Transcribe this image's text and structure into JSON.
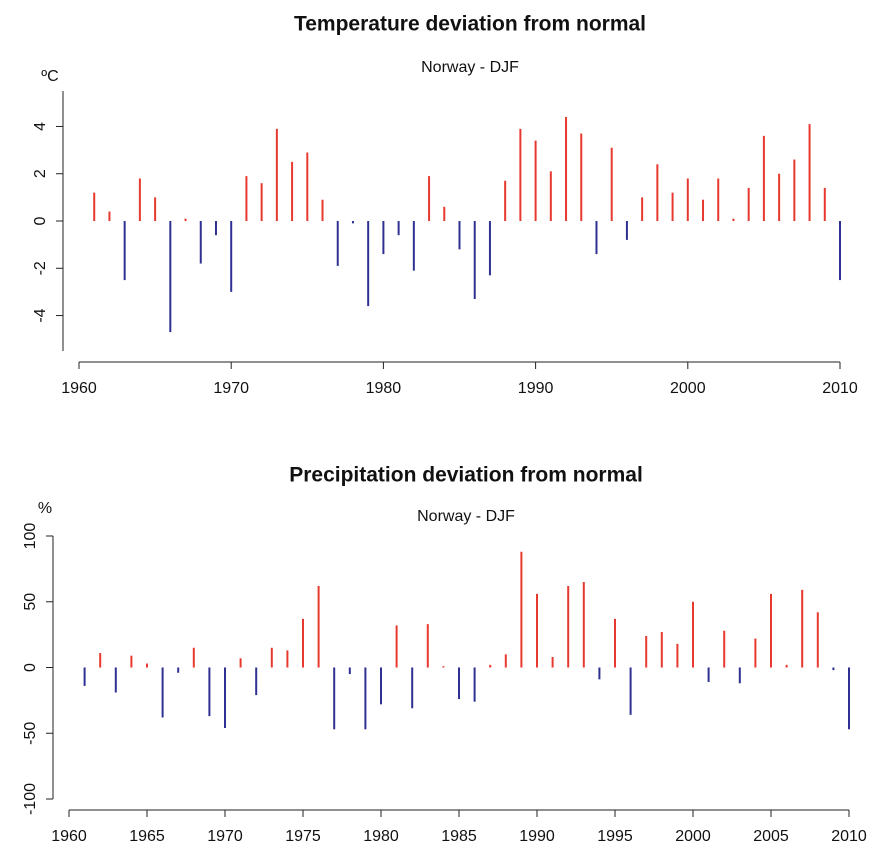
{
  "chart_data": [
    {
      "type": "bar",
      "title": "Temperature deviation from normal",
      "subtitle": "Norway - DJF",
      "y_label": "ºC",
      "positive_color": "#e8392f",
      "negative_color": "#2e3192",
      "x": [
        1961,
        1962,
        1963,
        1964,
        1965,
        1966,
        1967,
        1968,
        1969,
        1970,
        1971,
        1972,
        1973,
        1974,
        1975,
        1976,
        1977,
        1978,
        1979,
        1980,
        1981,
        1982,
        1983,
        1984,
        1985,
        1986,
        1987,
        1988,
        1989,
        1990,
        1991,
        1992,
        1993,
        1994,
        1995,
        1996,
        1997,
        1998,
        1999,
        2000,
        2001,
        2002,
        2003,
        2004,
        2005,
        2006,
        2007,
        2008,
        2009,
        2010
      ],
      "values": [
        1.2,
        0.4,
        -2.5,
        1.8,
        1.0,
        -4.7,
        0.1,
        -1.8,
        -0.6,
        -3.0,
        1.9,
        1.6,
        3.9,
        2.5,
        2.9,
        0.9,
        -1.9,
        -0.1,
        -3.6,
        -1.4,
        -0.6,
        -2.1,
        1.9,
        0.6,
        -1.2,
        -3.3,
        -2.3,
        1.7,
        3.9,
        3.4,
        2.1,
        4.4,
        3.7,
        -1.4,
        3.1,
        -0.8,
        1.0,
        2.4,
        1.2,
        1.8,
        0.9,
        1.8,
        0.1,
        1.4,
        3.6,
        2.0,
        2.6,
        4.1,
        1.4,
        -2.5
      ],
      "xlim": [
        1960,
        2010
      ],
      "xticks": [
        1960,
        1970,
        1980,
        1990,
        2000,
        2010
      ],
      "ylim": [
        -5.5,
        5.5
      ],
      "yticks": [
        -4,
        -2,
        0,
        2,
        4
      ]
    },
    {
      "type": "bar",
      "title": "Precipitation deviation from normal",
      "subtitle": "Norway - DJF",
      "y_label": "%",
      "positive_color": "#e8392f",
      "negative_color": "#2e3192",
      "x": [
        1961,
        1962,
        1963,
        1964,
        1965,
        1966,
        1967,
        1968,
        1969,
        1970,
        1971,
        1972,
        1973,
        1974,
        1975,
        1976,
        1977,
        1978,
        1979,
        1980,
        1981,
        1982,
        1983,
        1984,
        1985,
        1986,
        1987,
        1988,
        1989,
        1990,
        1991,
        1992,
        1993,
        1994,
        1995,
        1996,
        1997,
        1998,
        1999,
        2000,
        2001,
        2002,
        2003,
        2004,
        2005,
        2006,
        2007,
        2008,
        2009,
        2010
      ],
      "values": [
        -14,
        11,
        -19,
        9,
        3,
        -38,
        -4,
        15,
        -37,
        -46,
        7,
        -21,
        15,
        13,
        37,
        62,
        -47,
        -5,
        -47,
        -28,
        32,
        -31,
        33,
        1,
        -24,
        -26,
        2,
        10,
        88,
        56,
        8,
        62,
        65,
        -9,
        37,
        -36,
        24,
        27,
        18,
        50,
        -11,
        28,
        -12,
        22,
        56,
        2,
        59,
        42,
        -2,
        -47
      ],
      "xlim": [
        1960,
        2010
      ],
      "xticks": [
        1960,
        1965,
        1970,
        1975,
        1980,
        1985,
        1990,
        1995,
        2000,
        2005,
        2010
      ],
      "ylim": [
        -100,
        100
      ],
      "yticks": [
        -100,
        -50,
        0,
        50,
        100
      ]
    }
  ]
}
